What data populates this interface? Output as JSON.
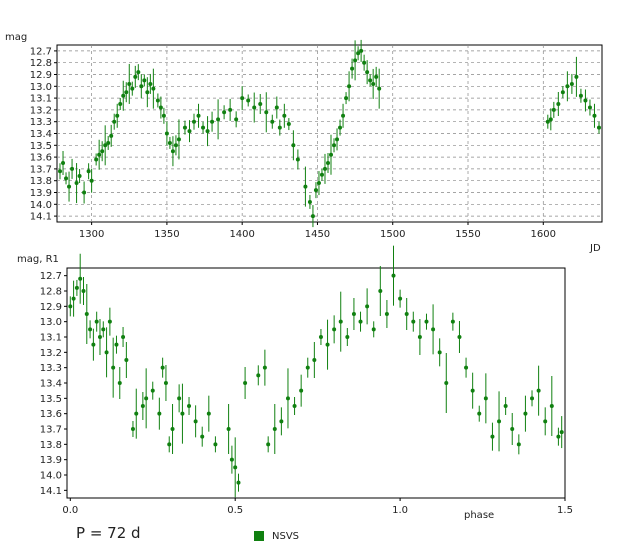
{
  "chart_data": [
    {
      "type": "scatter",
      "xlabel": "JD",
      "ylabel": "mag",
      "xlim": [
        1277,
        1639
      ],
      "ylim": [
        14.15,
        12.65
      ],
      "xticks": [
        1300,
        1350,
        1400,
        1450,
        1500,
        1550,
        1600
      ],
      "yticks": [
        12.7,
        12.8,
        12.9,
        13.0,
        13.1,
        13.2,
        13.3,
        13.4,
        13.5,
        13.6,
        13.7,
        13.8,
        13.9,
        14.0,
        14.1
      ],
      "grid": true,
      "series": [
        {
          "name": "NSVS",
          "color": "#108010",
          "points": [
            [
              1279,
              13.72
            ],
            [
              1281,
              13.65
            ],
            [
              1283,
              13.78
            ],
            [
              1285,
              13.85
            ],
            [
              1287,
              13.7
            ],
            [
              1290,
              13.82
            ],
            [
              1292,
              13.76
            ],
            [
              1295,
              13.9
            ],
            [
              1298,
              13.72
            ],
            [
              1300,
              13.8
            ],
            [
              1303,
              13.62
            ],
            [
              1305,
              13.58
            ],
            [
              1307,
              13.55
            ],
            [
              1309,
              13.5
            ],
            [
              1311,
              13.48
            ],
            [
              1313,
              13.42
            ],
            [
              1315,
              13.3
            ],
            [
              1317,
              13.25
            ],
            [
              1319,
              13.15
            ],
            [
              1321,
              13.08
            ],
            [
              1323,
              13.05
            ],
            [
              1325,
              12.98
            ],
            [
              1327,
              13.02
            ],
            [
              1329,
              12.92
            ],
            [
              1331,
              12.88
            ],
            [
              1333,
              13.0
            ],
            [
              1335,
              12.95
            ],
            [
              1337,
              13.05
            ],
            [
              1339,
              12.98
            ],
            [
              1341,
              13.02
            ],
            [
              1344,
              13.12
            ],
            [
              1346,
              13.18
            ],
            [
              1348,
              13.25
            ],
            [
              1350,
              13.4
            ],
            [
              1352,
              13.48
            ],
            [
              1354,
              13.55
            ],
            [
              1356,
              13.5
            ],
            [
              1358,
              13.45
            ],
            [
              1362,
              13.35
            ],
            [
              1365,
              13.38
            ],
            [
              1368,
              13.3
            ],
            [
              1371,
              13.25
            ],
            [
              1374,
              13.35
            ],
            [
              1377,
              13.38
            ],
            [
              1380,
              13.3
            ],
            [
              1384,
              13.28
            ],
            [
              1388,
              13.22
            ],
            [
              1392,
              13.2
            ],
            [
              1396,
              13.28
            ],
            [
              1400,
              13.1
            ],
            [
              1404,
              13.12
            ],
            [
              1408,
              13.18
            ],
            [
              1412,
              13.15
            ],
            [
              1416,
              13.22
            ],
            [
              1420,
              13.3
            ],
            [
              1423,
              13.18
            ],
            [
              1425,
              13.35
            ],
            [
              1428,
              13.25
            ],
            [
              1431,
              13.32
            ],
            [
              1434,
              13.5
            ],
            [
              1437,
              13.62
            ],
            [
              1442,
              13.85
            ],
            [
              1445,
              13.98
            ],
            [
              1447,
              14.1
            ],
            [
              1449,
              13.88
            ],
            [
              1451,
              13.82
            ],
            [
              1453,
              13.75
            ],
            [
              1455,
              13.7
            ],
            [
              1457,
              13.65
            ],
            [
              1459,
              13.58
            ],
            [
              1461,
              13.5
            ],
            [
              1463,
              13.45
            ],
            [
              1465,
              13.35
            ],
            [
              1467,
              13.25
            ],
            [
              1469,
              13.1
            ],
            [
              1471,
              13.0
            ],
            [
              1473,
              12.85
            ],
            [
              1475,
              12.78
            ],
            [
              1477,
              12.72
            ],
            [
              1479,
              12.7
            ],
            [
              1481,
              12.8
            ],
            [
              1483,
              12.88
            ],
            [
              1485,
              12.95
            ],
            [
              1487,
              12.98
            ],
            [
              1489,
              12.92
            ],
            [
              1491,
              13.02
            ],
            [
              1603,
              13.3
            ],
            [
              1605,
              13.28
            ],
            [
              1607,
              13.2
            ],
            [
              1610,
              13.15
            ],
            [
              1613,
              13.05
            ],
            [
              1616,
              13.0
            ],
            [
              1619,
              12.98
            ],
            [
              1622,
              12.92
            ],
            [
              1625,
              13.08
            ],
            [
              1628,
              13.12
            ],
            [
              1631,
              13.18
            ],
            [
              1634,
              13.25
            ],
            [
              1637,
              13.35
            ]
          ]
        }
      ]
    },
    {
      "type": "scatter",
      "xlabel": "phase",
      "ylabel": "mag, R1",
      "xlim": [
        -0.01,
        1.5
      ],
      "ylim": [
        14.15,
        12.65
      ],
      "xticks": [
        0.0,
        0.5,
        1.0,
        1.5
      ],
      "xtick_labels": [
        "0.0",
        "0.5",
        "1.0",
        "1.5"
      ],
      "yticks": [
        12.7,
        12.8,
        12.9,
        13.0,
        13.1,
        13.2,
        13.3,
        13.4,
        13.5,
        13.6,
        13.7,
        13.8,
        13.9,
        14.0,
        14.1
      ],
      "grid": false,
      "period_days": 72,
      "series": [
        {
          "name": "NSVS",
          "color": "#108010",
          "points": [
            [
              0.0,
              12.9
            ],
            [
              0.01,
              12.85
            ],
            [
              0.02,
              12.78
            ],
            [
              0.03,
              12.72
            ],
            [
              0.04,
              12.8
            ],
            [
              0.05,
              12.95
            ],
            [
              0.06,
              13.05
            ],
            [
              0.07,
              13.15
            ],
            [
              0.08,
              13.0
            ],
            [
              0.09,
              13.1
            ],
            [
              0.1,
              13.05
            ],
            [
              0.11,
              13.2
            ],
            [
              0.12,
              13.0
            ],
            [
              0.13,
              13.3
            ],
            [
              0.14,
              13.15
            ],
            [
              0.15,
              13.4
            ],
            [
              0.16,
              13.1
            ],
            [
              0.17,
              13.25
            ],
            [
              0.19,
              13.7
            ],
            [
              0.2,
              13.6
            ],
            [
              0.22,
              13.55
            ],
            [
              0.23,
              13.5
            ],
            [
              0.25,
              13.45
            ],
            [
              0.27,
              13.6
            ],
            [
              0.28,
              13.3
            ],
            [
              0.29,
              13.4
            ],
            [
              0.3,
              13.8
            ],
            [
              0.31,
              13.7
            ],
            [
              0.33,
              13.5
            ],
            [
              0.34,
              13.6
            ],
            [
              0.36,
              13.55
            ],
            [
              0.38,
              13.65
            ],
            [
              0.4,
              13.75
            ],
            [
              0.42,
              13.6
            ],
            [
              0.44,
              13.8
            ],
            [
              0.48,
              13.7
            ],
            [
              0.49,
              13.9
            ],
            [
              0.5,
              13.95
            ],
            [
              0.51,
              14.05
            ],
            [
              0.53,
              13.4
            ],
            [
              0.57,
              13.35
            ],
            [
              0.59,
              13.3
            ],
            [
              0.6,
              13.8
            ],
            [
              0.62,
              13.7
            ],
            [
              0.64,
              13.65
            ],
            [
              0.66,
              13.5
            ],
            [
              0.68,
              13.55
            ],
            [
              0.7,
              13.45
            ],
            [
              0.72,
              13.3
            ],
            [
              0.74,
              13.25
            ],
            [
              0.76,
              13.1
            ],
            [
              0.78,
              13.15
            ],
            [
              0.8,
              13.05
            ],
            [
              0.82,
              13.0
            ],
            [
              0.84,
              13.1
            ],
            [
              0.86,
              12.95
            ],
            [
              0.88,
              13.0
            ],
            [
              0.9,
              12.9
            ],
            [
              0.92,
              13.05
            ],
            [
              0.94,
              12.8
            ],
            [
              0.96,
              12.95
            ],
            [
              0.98,
              12.7
            ],
            [
              1.0,
              12.85
            ],
            [
              1.02,
              12.95
            ],
            [
              1.04,
              13.0
            ],
            [
              1.06,
              13.1
            ],
            [
              1.08,
              13.0
            ],
            [
              1.1,
              13.05
            ],
            [
              1.12,
              13.2
            ],
            [
              1.14,
              13.4
            ],
            [
              1.16,
              13.0
            ],
            [
              1.18,
              13.1
            ],
            [
              1.2,
              13.3
            ],
            [
              1.22,
              13.45
            ],
            [
              1.24,
              13.6
            ],
            [
              1.26,
              13.5
            ],
            [
              1.28,
              13.75
            ],
            [
              1.3,
              13.65
            ],
            [
              1.32,
              13.55
            ],
            [
              1.34,
              13.7
            ],
            [
              1.36,
              13.8
            ],
            [
              1.38,
              13.6
            ],
            [
              1.4,
              13.5
            ],
            [
              1.42,
              13.45
            ],
            [
              1.44,
              13.65
            ],
            [
              1.46,
              13.55
            ],
            [
              1.48,
              13.75
            ],
            [
              1.49,
              13.72
            ]
          ]
        }
      ]
    }
  ],
  "legend": {
    "label": "NSVS",
    "color": "#108010",
    "placement": "bottom-center"
  },
  "period_note": "P = 72 d"
}
